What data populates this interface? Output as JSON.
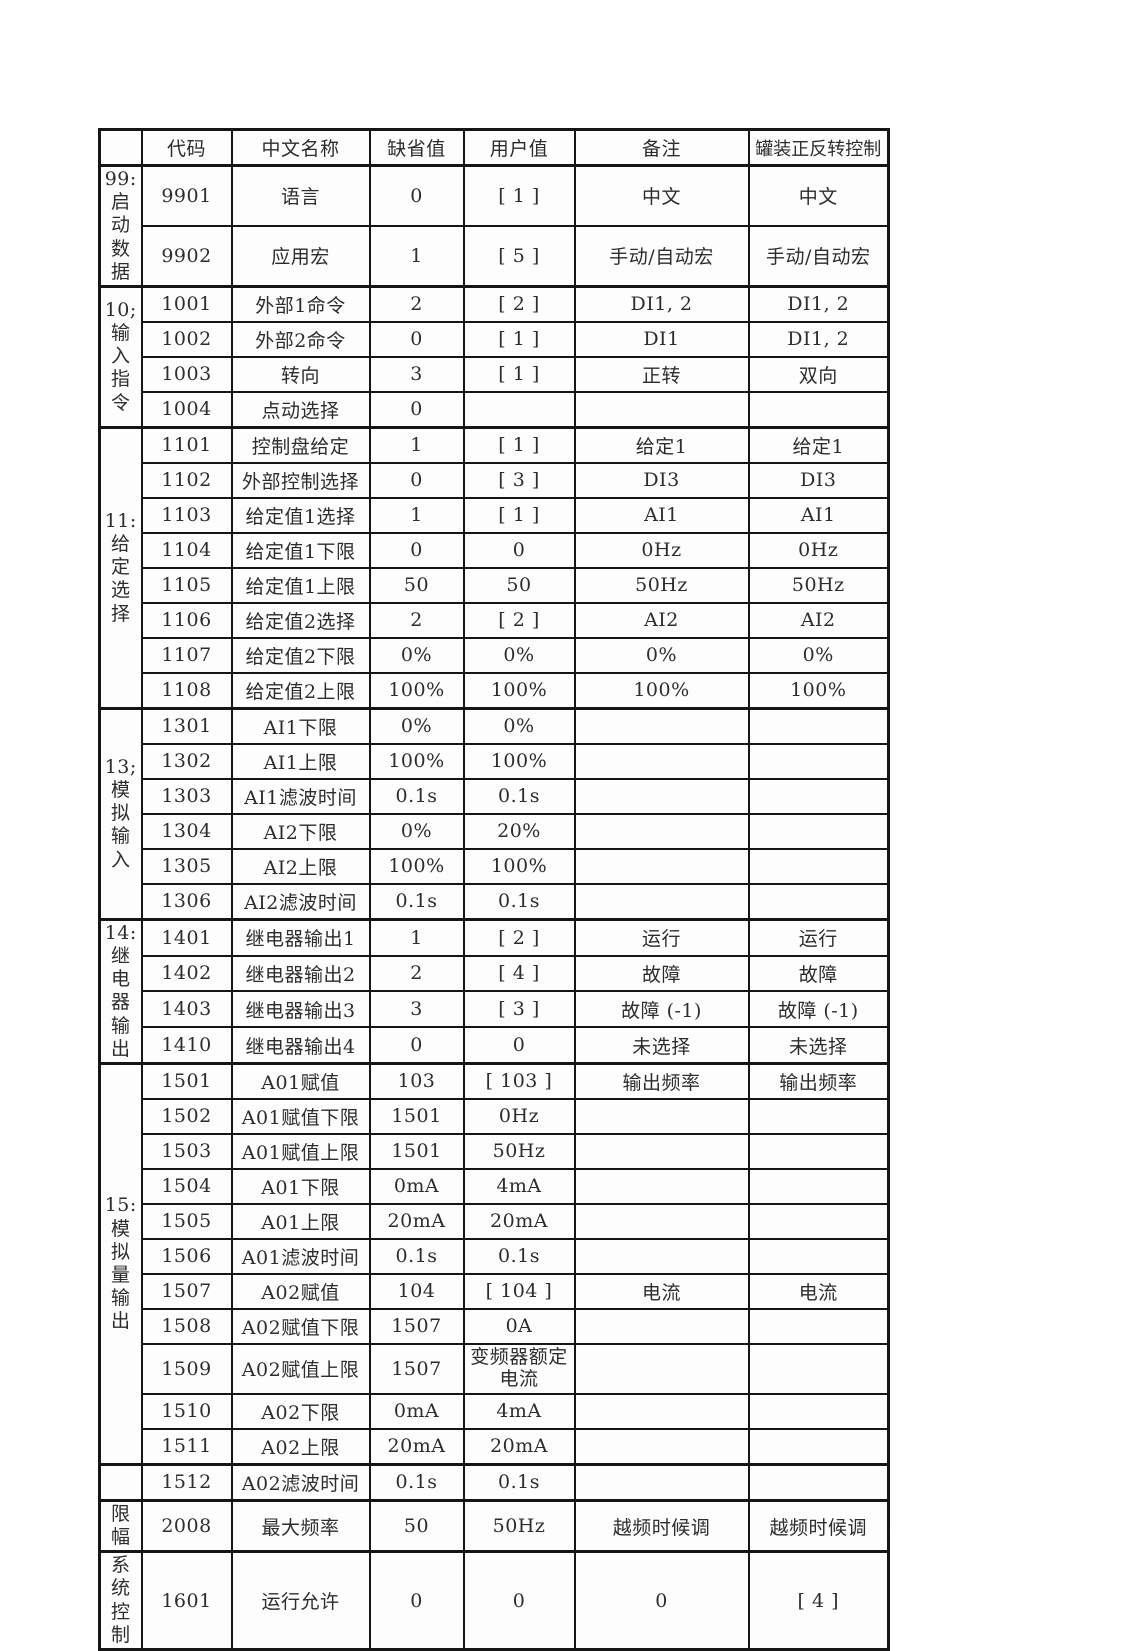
{
  "table": {
    "columns": [
      "",
      "代码",
      "中文名称",
      "缺省值",
      "用户值",
      "备注",
      "罐装正反转控制"
    ],
    "groups": [
      {
        "label_lines": [
          "99:",
          "启动",
          "数据"
        ],
        "rows": [
          {
            "code": "9901",
            "name": "语言",
            "default": "0",
            "user": "[ 1 ]",
            "remark": "中文",
            "control": "中文"
          },
          {
            "code": "9902",
            "name": "应用宏",
            "default": "1",
            "user": "[ 5 ]",
            "remark": "手动/自动宏",
            "control": "手动/自动宏"
          }
        ]
      },
      {
        "label_lines": [
          "10;",
          "输入",
          "指令"
        ],
        "rows": [
          {
            "code": "1001",
            "name": "外部1命令",
            "default": "2",
            "user": "[ 2 ]",
            "remark": "DI1, 2",
            "control": "DI1, 2"
          },
          {
            "code": "1002",
            "name": "外部2命令",
            "default": "0",
            "user": "[ 1 ]",
            "remark": "DI1",
            "control": "DI1, 2"
          },
          {
            "code": "1003",
            "name": "转向",
            "default": "3",
            "user": "[ 1 ]",
            "remark": "正转",
            "control": "双向"
          },
          {
            "code": "1004",
            "name": "点动选择",
            "default": "0",
            "user": "",
            "remark": "",
            "control": ""
          }
        ]
      },
      {
        "label_lines": [
          "11:",
          "给定",
          "选择"
        ],
        "rows": [
          {
            "code": "1101",
            "name": "控制盘给定",
            "default": "1",
            "user": "[ 1 ]",
            "remark": "给定1",
            "control": "给定1"
          },
          {
            "code": "1102",
            "name": "外部控制选择",
            "default": "0",
            "user": "[ 3 ]",
            "remark": "DI3",
            "control": "DI3"
          },
          {
            "code": "1103",
            "name": "给定值1选择",
            "default": "1",
            "user": "[ 1 ]",
            "remark": "AI1",
            "control": "AI1"
          },
          {
            "code": "1104",
            "name": "给定值1下限",
            "default": "0",
            "user": "0",
            "remark": "0Hz",
            "control": "0Hz"
          },
          {
            "code": "1105",
            "name": "给定值1上限",
            "default": "50",
            "user": "50",
            "remark": "50Hz",
            "control": "50Hz"
          },
          {
            "code": "1106",
            "name": "给定值2选择",
            "default": "2",
            "user": "[ 2 ]",
            "remark": "AI2",
            "control": "AI2"
          },
          {
            "code": "1107",
            "name": "给定值2下限",
            "default": "0%",
            "user": "0%",
            "remark": "0%",
            "control": "0%"
          },
          {
            "code": "1108",
            "name": "给定值2上限",
            "default": "100%",
            "user": "100%",
            "remark": "100%",
            "control": "100%"
          }
        ]
      },
      {
        "label_lines": [
          "13;",
          "模拟",
          "输入"
        ],
        "rows": [
          {
            "code": "1301",
            "name": "AI1下限",
            "default": "0%",
            "user": "0%",
            "remark": "",
            "control": ""
          },
          {
            "code": "1302",
            "name": "AI1上限",
            "default": "100%",
            "user": "100%",
            "remark": "",
            "control": ""
          },
          {
            "code": "1303",
            "name": "AI1滤波时间",
            "default": "0.1s",
            "user": "0.1s",
            "remark": "",
            "control": ""
          },
          {
            "code": "1304",
            "name": "AI2下限",
            "default": "0%",
            "user": "20%",
            "remark": "",
            "control": ""
          },
          {
            "code": "1305",
            "name": "AI2上限",
            "default": "100%",
            "user": "100%",
            "remark": "",
            "control": ""
          },
          {
            "code": "1306",
            "name": "AI2滤波时间",
            "default": "0.1s",
            "user": "0.1s",
            "remark": "",
            "control": ""
          }
        ]
      },
      {
        "label_lines": [
          "14:",
          "继电",
          "器输",
          "出"
        ],
        "rows": [
          {
            "code": "1401",
            "name": "继电器输出1",
            "default": "1",
            "user": "[ 2 ]",
            "remark": "运行",
            "control": "运行"
          },
          {
            "code": "1402",
            "name": "继电器输出2",
            "default": "2",
            "user": "[ 4 ]",
            "remark": "故障",
            "control": "故障"
          },
          {
            "code": "1403",
            "name": "继电器输出3",
            "default": "3",
            "user": "[ 3 ]",
            "remark": "故障 (-1)",
            "control": "故障 (-1)"
          },
          {
            "code": "1410",
            "name": "继电器输出4",
            "default": "0",
            "user": "0",
            "remark": "未选择",
            "control": "未选择"
          }
        ]
      },
      {
        "label_lines": [
          "15:",
          "模拟",
          "量输",
          "出"
        ],
        "rows": [
          {
            "code": "1501",
            "name": "A01赋值",
            "default": "103",
            "user": "[ 103 ]",
            "remark": "输出频率",
            "control": "输出频率"
          },
          {
            "code": "1502",
            "name": "A01赋值下限",
            "default": "1501",
            "user": "0Hz",
            "remark": "",
            "control": ""
          },
          {
            "code": "1503",
            "name": "A01赋值上限",
            "default": "1501",
            "user": "50Hz",
            "remark": "",
            "control": ""
          },
          {
            "code": "1504",
            "name": "A01下限",
            "default": "0mA",
            "user": "4mA",
            "remark": "",
            "control": ""
          },
          {
            "code": "1505",
            "name": "A01上限",
            "default": "20mA",
            "user": "20mA",
            "remark": "",
            "control": ""
          },
          {
            "code": "1506",
            "name": "A01滤波时间",
            "default": "0.1s",
            "user": "0.1s",
            "remark": "",
            "control": ""
          },
          {
            "code": "1507",
            "name": "A02赋值",
            "default": "104",
            "user": "[ 104 ]",
            "remark": "电流",
            "control": "电流"
          },
          {
            "code": "1508",
            "name": "A02赋值下限",
            "default": "1507",
            "user": "0A",
            "remark": "",
            "control": ""
          },
          {
            "code": "1509",
            "name": "A02赋值上限",
            "default": "1507",
            "user": "变频器额定电流",
            "user_small": true,
            "h": 50,
            "remark": "",
            "control": ""
          },
          {
            "code": "1510",
            "name": "A02下限",
            "default": "0mA",
            "user": "4mA",
            "remark": "",
            "control": ""
          },
          {
            "code": "1511",
            "name": "A02上限",
            "default": "20mA",
            "user": "20mA",
            "remark": "",
            "control": ""
          }
        ]
      },
      {
        "label_lines": [],
        "gap": true,
        "rows": [
          {
            "code": "1512",
            "name": "A02滤波时间",
            "default": "0.1s",
            "user": "0.1s",
            "remark": "",
            "control": ""
          }
        ]
      },
      {
        "label_lines": [
          "限幅"
        ],
        "rows": [
          {
            "code": "2008",
            "name": "最大频率",
            "default": "50",
            "user": "50Hz",
            "remark": "越频时候调",
            "control": "越频时候调"
          }
        ]
      },
      {
        "label_lines": [
          "系统",
          "控制"
        ],
        "rows": [
          {
            "code": "1601",
            "name": "运行允许",
            "default": "0",
            "user": "0",
            "remark": "0",
            "control": "[ 4 ]",
            "h": 46
          }
        ]
      }
    ]
  }
}
